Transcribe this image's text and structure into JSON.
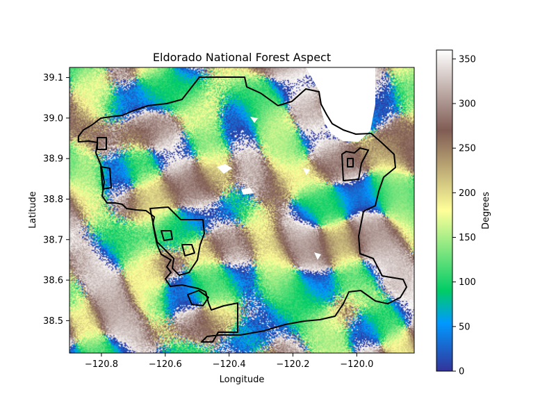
{
  "map": {
    "title": "Eldorado National Forest Aspect",
    "xlabel": "Longitude",
    "ylabel": "Latitude",
    "x_range": [
      -120.9,
      -119.82
    ],
    "y_range": [
      38.42,
      39.125
    ],
    "x_ticks": [
      -120.8,
      -120.6,
      -120.4,
      -120.2,
      -120.0
    ],
    "x_tick_labels": [
      "−120.8",
      "−120.6",
      "−120.4",
      "−120.2",
      "−120.0"
    ],
    "y_ticks": [
      38.5,
      38.6,
      38.7,
      38.8,
      38.9,
      39.0,
      39.1
    ],
    "y_tick_labels": [
      "38.5",
      "38.6",
      "38.7",
      "38.8",
      "38.9",
      "39.0",
      "39.1"
    ],
    "raster_variable": "aspect",
    "boundary_color": "#000000",
    "water_color": "#ffffff"
  },
  "colorbar": {
    "label": "Degrees",
    "range": [
      0,
      360
    ],
    "ticks": [
      0,
      50,
      100,
      150,
      200,
      250,
      300,
      350
    ],
    "tick_labels": [
      "0",
      "50",
      "100",
      "150",
      "200",
      "250",
      "300",
      "350"
    ],
    "colormap": "terrain",
    "colormap_stops": [
      [
        "0",
        "#333399"
      ],
      [
        "0.15",
        "#0099ff"
      ],
      [
        "0.25",
        "#00cc66"
      ],
      [
        "0.5",
        "#ffff99"
      ],
      [
        "0.75",
        "#805c54"
      ],
      [
        "1",
        "#ffffff"
      ]
    ]
  }
}
